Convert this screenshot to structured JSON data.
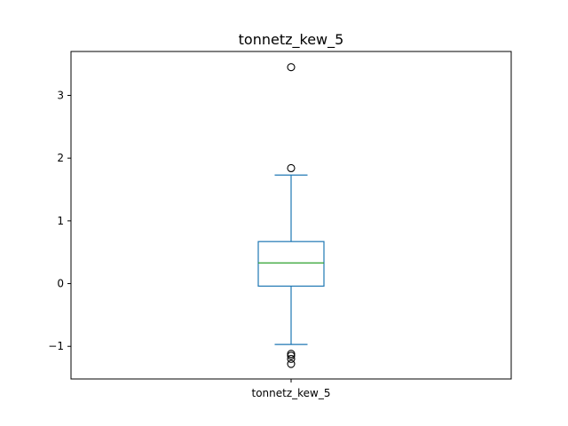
{
  "chart_data": {
    "type": "box",
    "title": "tonnetz_kew_5",
    "categories": [
      "tonnetz_kew_5"
    ],
    "xlabel": "",
    "ylabel": "",
    "ylim": [
      -1.52,
      3.7
    ],
    "yticks": [
      -1,
      0,
      1,
      2,
      3
    ],
    "ytick_labels": [
      "−1",
      "0",
      "1",
      "2",
      "3"
    ],
    "grid": false,
    "legend": "none",
    "series": [
      {
        "category": "tonnetz_kew_5",
        "whisker_low": -0.97,
        "q1": -0.04,
        "median": 0.33,
        "q3": 0.67,
        "whisker_high": 1.73,
        "outliers": [
          3.45,
          1.84,
          -1.12,
          -1.15,
          -1.2,
          -1.28
        ]
      }
    ],
    "colors": {
      "box": "#1f77b4",
      "median": "#2ca02c",
      "outlier_edge": "#000000",
      "axes": "#000000"
    }
  }
}
